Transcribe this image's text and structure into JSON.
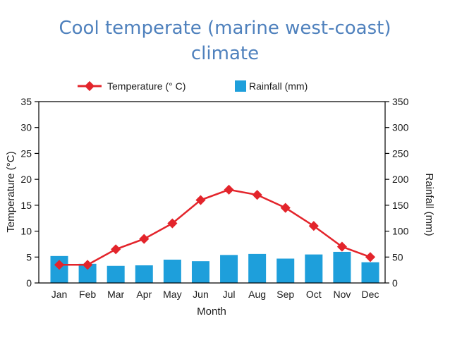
{
  "slide": {
    "title_line1": "Cool temperate (marine west-coast)",
    "title_line2": "climate"
  },
  "chart_data": {
    "type": "bar+line",
    "categories": [
      "Jan",
      "Feb",
      "Mar",
      "Apr",
      "May",
      "Jun",
      "Jul",
      "Aug",
      "Sep",
      "Oct",
      "Nov",
      "Dec"
    ],
    "series": [
      {
        "name": "Temperature (° C)",
        "type": "line",
        "axis": "left",
        "color": "#e3242b",
        "values": [
          3.5,
          3.5,
          6.5,
          8.5,
          11.5,
          16,
          18,
          17,
          14.5,
          11,
          7,
          5
        ]
      },
      {
        "name": "Rainfall (mm)",
        "type": "bar",
        "axis": "right",
        "color": "#1e9fdb",
        "values": [
          52,
          37,
          33,
          34,
          45,
          42,
          54,
          56,
          47,
          55,
          60,
          40
        ]
      }
    ],
    "xlabel": "Month",
    "ylabel_left": "Temperature (°C)",
    "ylabel_right": "Rainfall (mm)",
    "ylim_left": [
      0,
      35
    ],
    "ylim_right": [
      0,
      350
    ],
    "yticks_left": [
      "0",
      "5",
      "10",
      "15",
      "20",
      "25",
      "30",
      "35"
    ],
    "yticks_right": [
      "0",
      "50",
      "100",
      "150",
      "200",
      "250",
      "300",
      "350"
    ],
    "legend": [
      "Temperature (° C)",
      "Rainfall (mm)"
    ],
    "legend_position": "top-center",
    "grid": false
  }
}
